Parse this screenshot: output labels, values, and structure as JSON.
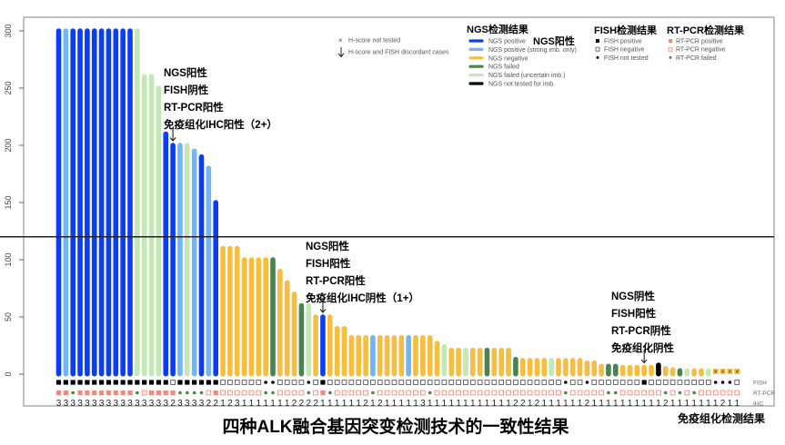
{
  "chart_data": {
    "type": "bar",
    "title": "四种ALK融合基因突变检测技术的一致性结果",
    "ylim": [
      0,
      300
    ],
    "yticks": [
      0,
      50,
      100,
      150,
      200,
      250,
      300
    ],
    "reference_line": 120,
    "grid": false,
    "legend_placement": "top-right",
    "h_score": [
      300,
      300,
      300,
      300,
      300,
      300,
      300,
      300,
      300,
      300,
      300,
      300,
      260,
      260,
      250,
      210,
      200,
      200,
      200,
      195,
      190,
      180,
      150,
      110,
      110,
      110,
      100,
      100,
      100,
      100,
      100,
      90,
      80,
      70,
      60,
      60,
      50,
      50,
      50,
      40,
      40,
      32,
      32,
      32,
      32,
      32,
      32,
      32,
      32,
      32,
      32,
      32,
      32,
      27,
      24,
      21,
      21,
      21,
      21,
      21,
      21,
      21,
      21,
      21,
      13,
      12,
      12,
      12,
      12,
      12,
      12,
      12,
      12,
      12,
      10,
      10,
      7,
      7,
      7,
      6,
      6,
      6,
      6,
      6,
      8,
      5,
      4,
      3,
      3,
      3,
      3,
      3,
      null,
      null,
      null,
      null
    ],
    "ngs": [
      "B",
      "LB",
      "B",
      "B",
      "B",
      "B",
      "B",
      "B",
      "B",
      "B",
      "B",
      "LG",
      "LG",
      "LG",
      "LG",
      "B",
      "B",
      "LB",
      "LG",
      "LB",
      "B",
      "LB",
      "B",
      "Y",
      "Y",
      "Y",
      "Y",
      "Y",
      "Y",
      "Y",
      "G",
      "Y",
      "Y",
      "Y",
      "G",
      "LG",
      "Y",
      "B",
      "Y",
      "Y",
      "Y",
      "Y",
      "Y",
      "Y",
      "LB",
      "Y",
      "Y",
      "Y",
      "Y",
      "LB",
      "Y",
      "Y",
      "Y",
      "Y",
      "LG",
      "Y",
      "Y",
      "LG",
      "Y",
      "Y",
      "G",
      "Y",
      "Y",
      "Y",
      "G",
      "Y",
      "Y",
      "Y",
      "Y",
      "LG",
      "Y",
      "Y",
      "Y",
      "Y",
      "Y",
      "Y",
      "Y",
      "G",
      "G",
      "Y",
      "Y",
      "Y",
      "Y",
      "Y",
      "K",
      "Y",
      "Y",
      "G",
      "LG",
      "Y",
      "Y",
      "LG",
      "Y",
      "Y",
      "Y",
      "Y"
    ],
    "fish": [
      "P",
      "P",
      "P",
      "P",
      "P",
      "P",
      "P",
      "P",
      "P",
      "P",
      "P",
      "P",
      "P",
      "P",
      "P",
      "P",
      "N",
      "P",
      "P",
      "P",
      "P",
      "P",
      "P",
      "N",
      "N",
      "N",
      "N",
      "N",
      "N",
      "T",
      "T",
      "N",
      "N",
      "N",
      "N",
      "T",
      "N",
      "P",
      "N",
      "N",
      "N",
      "N",
      "N",
      "N",
      "N",
      "N",
      "N",
      "N",
      "N",
      "N",
      "N",
      "N",
      "N",
      "N",
      "N",
      "N",
      "N",
      "N",
      "N",
      "N",
      "N",
      "N",
      "N",
      "N",
      "N",
      "N",
      "N",
      "N",
      "N",
      "N",
      "N",
      "T",
      "N",
      "N",
      "T",
      "N",
      "N",
      "N",
      "N",
      "N",
      "N",
      "N",
      "P",
      "N",
      "N",
      "N",
      "N",
      "N",
      "N",
      "N",
      "N",
      "N",
      "T",
      "T",
      "T",
      "N"
    ],
    "rtpcr": [
      "P",
      "P",
      "F",
      "P",
      "P",
      "P",
      "P",
      "P",
      "P",
      "P",
      "P",
      "F",
      "N",
      "P",
      "P",
      "P",
      "P",
      "F",
      "F",
      "F",
      "F",
      "N",
      "P",
      "N",
      "N",
      "N",
      "N",
      "N",
      "N",
      "F",
      "F",
      "N",
      "N",
      "N",
      "N",
      "F",
      "N",
      "P",
      "F",
      "N",
      "N",
      "N",
      "N",
      "N",
      "F",
      "N",
      "N",
      "N",
      "N",
      "N",
      "N",
      "N",
      "F",
      "N",
      "N",
      "N",
      "N",
      "N",
      "N",
      "N",
      "N",
      "N",
      "N",
      "N",
      "N",
      "N",
      "N",
      "N",
      "N",
      "N",
      "N",
      "F",
      "N",
      "N",
      "N",
      "N",
      "N",
      "F",
      "F",
      "N",
      "N",
      "N",
      "N",
      "N",
      "N",
      "F",
      "N",
      "F",
      "N",
      "F",
      "N",
      "N",
      "N",
      "N",
      "N",
      "N"
    ],
    "ihc": [
      "3",
      "3",
      "3",
      "3",
      "3",
      "3",
      "3",
      "3",
      "3",
      "3",
      "3",
      "3",
      "3",
      "3",
      "3",
      "3",
      "2",
      "3",
      "3",
      "3",
      "3",
      "2",
      "2",
      "1",
      "2",
      "3",
      "1",
      "1",
      "1",
      "1",
      "1",
      "1",
      "1",
      "2",
      "2",
      "2",
      "2",
      "1",
      "1",
      "1",
      "1",
      "1",
      "1",
      "2",
      "1",
      "2",
      "1",
      "1",
      "1",
      "1",
      "1",
      "3",
      "1",
      "1",
      "1",
      "1",
      "1",
      "1",
      "1",
      "1",
      "1",
      "1",
      "1",
      "1",
      "2",
      "2",
      "1",
      "2",
      "1",
      "1",
      "1",
      "1",
      "1",
      "1",
      "2",
      "1",
      "1",
      "1",
      "1",
      "1",
      "1",
      "1",
      "1",
      "1",
      "1",
      "2",
      "1",
      "1",
      "1",
      "1",
      "1",
      "1",
      "1",
      "2",
      "1",
      "1"
    ],
    "discordant_arrows": [
      17,
      38,
      83
    ],
    "row_labels": [
      "FISH",
      "RT-PCR",
      "IHC"
    ],
    "row_group_label": "免疫组化检测结果",
    "colors": {
      "B": "#0b3df5",
      "LB": "#72b5f6",
      "Y": "#f7bd3e",
      "G": "#4b8251",
      "LG": "#c3e8b6",
      "K": "#000000",
      "fish_pos": "#000000",
      "rt_pos": "#ef8a7e",
      "rt_neg": "#ef8a7e",
      "rt_failed": "#3f8a4a"
    }
  },
  "legend": {
    "hscore_items": [
      "H-score not tested",
      "H-score and FISH discordant cases"
    ],
    "ngs_title": "NGS检测结果",
    "ngs_items": [
      {
        "code": "B",
        "label": "NGS positive"
      },
      {
        "code": "LB",
        "label": "NGS positive (strong imb. only)"
      },
      {
        "code": "Y",
        "label": "NGS negative"
      },
      {
        "code": "G",
        "label": "NGS failed"
      },
      {
        "code": "LG",
        "label": "NGS failed (uncertain imb.)"
      },
      {
        "code": "K",
        "label": "NGS not tested for imb."
      }
    ],
    "ngs_positive_cn": "NGS阳性",
    "fish_title": "FISH检测结果",
    "fish_items": [
      "FISH positive",
      "FISH negative",
      "FISH not tested"
    ],
    "rt_title": "RT-PCR检测结果",
    "rt_items": [
      "RT-PCR positive",
      "RT-PCR negative",
      "RT-PCR failed"
    ]
  },
  "annotations": [
    {
      "bar": 17,
      "lines": [
        "NGS阳性",
        "FISH阴性",
        "RT-PCR阳性",
        "免疫组化IHC阳性（2+）"
      ]
    },
    {
      "bar": 38,
      "lines": [
        "NGS阳性",
        "FISH阳性",
        "RT-PCR阳性",
        "免疫组化IHC阴性（1+）"
      ]
    },
    {
      "bar": 83,
      "lines": [
        "NGS阴性",
        "FISH阳性",
        "RT-PCR阴性",
        "免疫组化阴性"
      ]
    }
  ]
}
